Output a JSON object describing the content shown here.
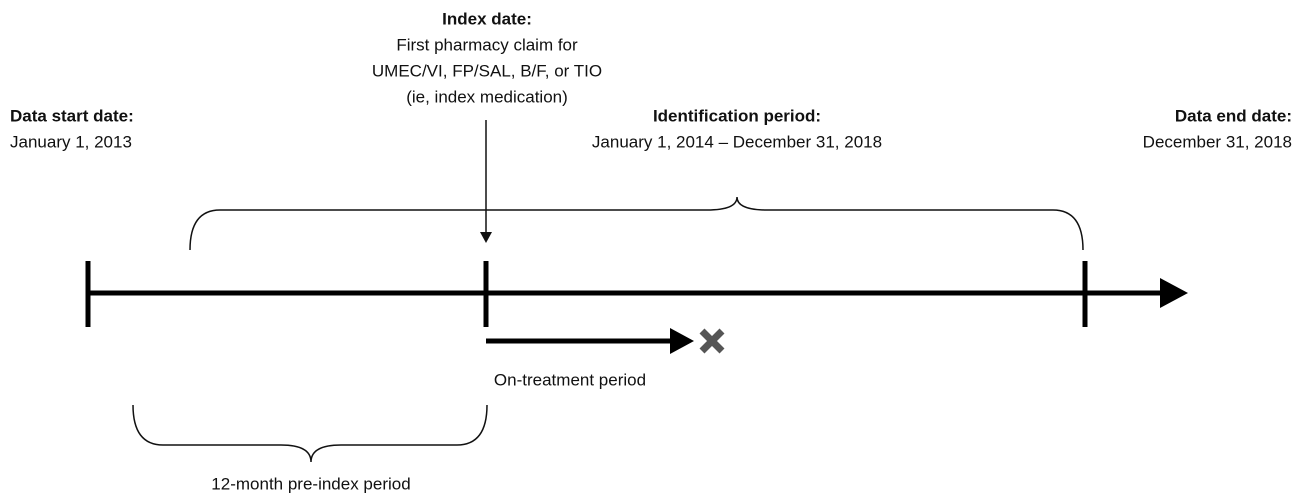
{
  "index_date": {
    "title": "Index date:",
    "lines": [
      "First pharmacy claim for",
      "UMEC/VI, FP/SAL, B/F, or TIO",
      "(ie, index medication)"
    ]
  },
  "data_start": {
    "title": "Data start date:",
    "date": "January 1, 2013"
  },
  "identification": {
    "title": "Identification period:",
    "range": "January 1, 2014 – December 31, 2018"
  },
  "data_end": {
    "title": "Data end date:",
    "date": "December 31, 2018"
  },
  "on_treatment": {
    "label": "On-treatment period"
  },
  "pre_index": {
    "label": "12-month pre-index period"
  }
}
